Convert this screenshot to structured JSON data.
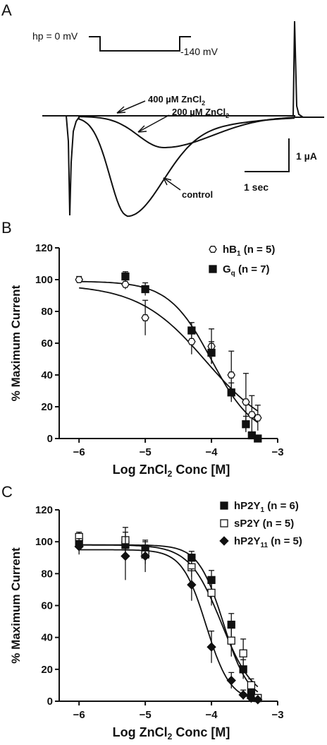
{
  "panels": {
    "a": {
      "letter": "A",
      "protocol": {
        "holding_label": "hp = 0 mV",
        "step_label": "-140 mV"
      },
      "trace_labels": [
        {
          "base": "400 µM ZnCl",
          "sub": "2"
        },
        {
          "base": "200 µM ZnCl",
          "sub": "2"
        },
        {
          "base": "control",
          "sub": ""
        }
      ],
      "scale_bar": {
        "current": "1 µA",
        "time": "1 sec"
      }
    },
    "b": {
      "letter": "B"
    },
    "c": {
      "letter": "C"
    }
  },
  "chart_data": [
    {
      "panel": "B",
      "type": "scatter",
      "ylabel": "% Maximum Current",
      "xlabel": {
        "base": "Log ZnCl",
        "sub": "2",
        "rest": " Conc [M]"
      },
      "xlim": [
        -6.3,
        -3.0
      ],
      "ylim": [
        0,
        120
      ],
      "xticks": [
        -6,
        -5,
        -4,
        -3
      ],
      "yticks": [
        0,
        20,
        40,
        60,
        80,
        100,
        120
      ],
      "legend_position": "top-right",
      "series": [
        {
          "name": {
            "base": "hB",
            "sub": "1",
            "rest": " (n = 5)"
          },
          "marker": "open-hexagon",
          "x": [
            -6.0,
            -5.3,
            -5.0,
            -4.3,
            -4.0,
            -3.7,
            -3.48,
            -3.39,
            -3.3
          ],
          "y": [
            100,
            97,
            76,
            61,
            58,
            40,
            23,
            15,
            13
          ],
          "err": [
            2,
            3,
            11,
            8,
            11,
            15,
            18,
            12,
            8
          ],
          "fit": {
            "top": 97,
            "bottom": 0,
            "logIC50": -4.08,
            "hill": 0.85
          }
        },
        {
          "name": {
            "base": "G",
            "sub": "q",
            "rest": " (n = 7)"
          },
          "marker": "filled-square",
          "x": [
            -5.3,
            -5.0,
            -4.3,
            -4.0,
            -3.7,
            -3.48,
            -3.39,
            -3.3
          ],
          "y": [
            102,
            94,
            68,
            54,
            29,
            9,
            2,
            0
          ],
          "err": [
            3,
            4,
            5,
            7,
            6,
            5,
            2,
            2
          ],
          "fit": {
            "top": 99,
            "bottom": 0,
            "logIC50": -4.0,
            "hill": 1.35
          }
        }
      ]
    },
    {
      "panel": "C",
      "type": "scatter",
      "ylabel": "% Maximum Current",
      "xlabel": {
        "base": "Log ZnCl",
        "sub": "2",
        "rest": " Conc [M]"
      },
      "xlim": [
        -6.3,
        -3.0
      ],
      "ylim": [
        0,
        120
      ],
      "xticks": [
        -6,
        -5,
        -4,
        -3
      ],
      "yticks": [
        0,
        20,
        40,
        60,
        80,
        100,
        120
      ],
      "legend_position": "top-right",
      "series": [
        {
          "name": {
            "base": "hP2Y",
            "sub": "1",
            "rest": " (n = 6)"
          },
          "marker": "filled-square",
          "x": [
            -6.0,
            -5.3,
            -5.0,
            -4.3,
            -4.0,
            -3.7,
            -3.52,
            -3.4,
            -3.3
          ],
          "y": [
            100,
            98,
            95,
            90,
            76,
            48,
            20,
            5,
            2
          ],
          "err": [
            4,
            4,
            5,
            4,
            6,
            7,
            6,
            3,
            2
          ],
          "fit": {
            "top": 98,
            "bottom": 0,
            "logIC50": -3.82,
            "hill": 2.3
          }
        },
        {
          "name": {
            "base": "sP2Y",
            "sub": "",
            "rest": " (n = 5)"
          },
          "marker": "open-square",
          "x": [
            -6.0,
            -5.3,
            -5.0,
            -4.3,
            -4.0,
            -3.7,
            -3.52,
            -3.4,
            -3.3
          ],
          "y": [
            103,
            101,
            92,
            84,
            68,
            38,
            30,
            10,
            2
          ],
          "err": [
            3,
            8,
            6,
            6,
            8,
            10,
            9,
            4,
            2
          ],
          "fit": {
            "top": 98,
            "bottom": 0,
            "logIC50": -3.85,
            "hill": 1.8
          }
        },
        {
          "name": {
            "base": "hP2Y",
            "sub": "11",
            "rest": " (n = 5)"
          },
          "marker": "filled-diamond",
          "x": [
            -6.0,
            -5.3,
            -5.0,
            -4.3,
            -4.0,
            -3.7,
            -3.52,
            -3.4,
            -3.3
          ],
          "y": [
            97,
            91,
            91,
            73,
            34,
            13,
            4,
            2,
            1
          ],
          "err": [
            5,
            15,
            10,
            10,
            10,
            5,
            3,
            2,
            1
          ],
          "fit": {
            "top": 95,
            "bottom": 0,
            "logIC50": -4.08,
            "hill": 2.4
          }
        }
      ]
    }
  ]
}
